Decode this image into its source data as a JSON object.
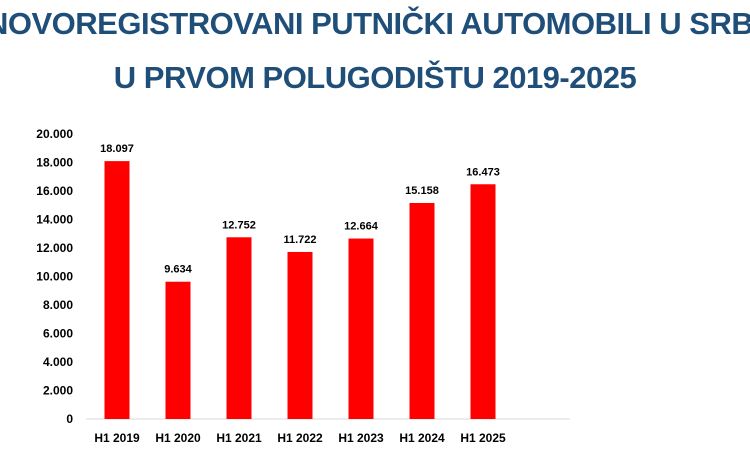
{
  "title": {
    "line1": "NOVOREGISTROVANI PUTNIČKI AUTOMOBILI U SRBIJI",
    "line2": "U PRVOM POLUGODIŠTU 2019-2025"
  },
  "colors": {
    "title": "#1f4e79",
    "bar": "#ff0000",
    "axis": "#d9d9d9",
    "text": "#000000"
  },
  "chart_data": {
    "type": "bar",
    "categories": [
      "H1 2019",
      "H1 2020",
      "H1 2021",
      "H1 2022",
      "H1 2023",
      "H1 2024",
      "H1 2025"
    ],
    "values": [
      18097,
      9634,
      12752,
      11722,
      12664,
      15158,
      16473
    ],
    "value_labels": [
      "18.097",
      "9.634",
      "12.752",
      "11.722",
      "12.664",
      "15.158",
      "16.473"
    ],
    "y_ticks": [
      0,
      2000,
      4000,
      6000,
      8000,
      10000,
      12000,
      14000,
      16000,
      18000,
      20000
    ],
    "y_tick_labels": [
      "0",
      "2.000",
      "4.000",
      "6.000",
      "8.000",
      "10.000",
      "12.000",
      "14.000",
      "16.000",
      "18.000",
      "20.000"
    ],
    "ylim": [
      0,
      20000
    ],
    "grid": false,
    "legend": "none"
  }
}
